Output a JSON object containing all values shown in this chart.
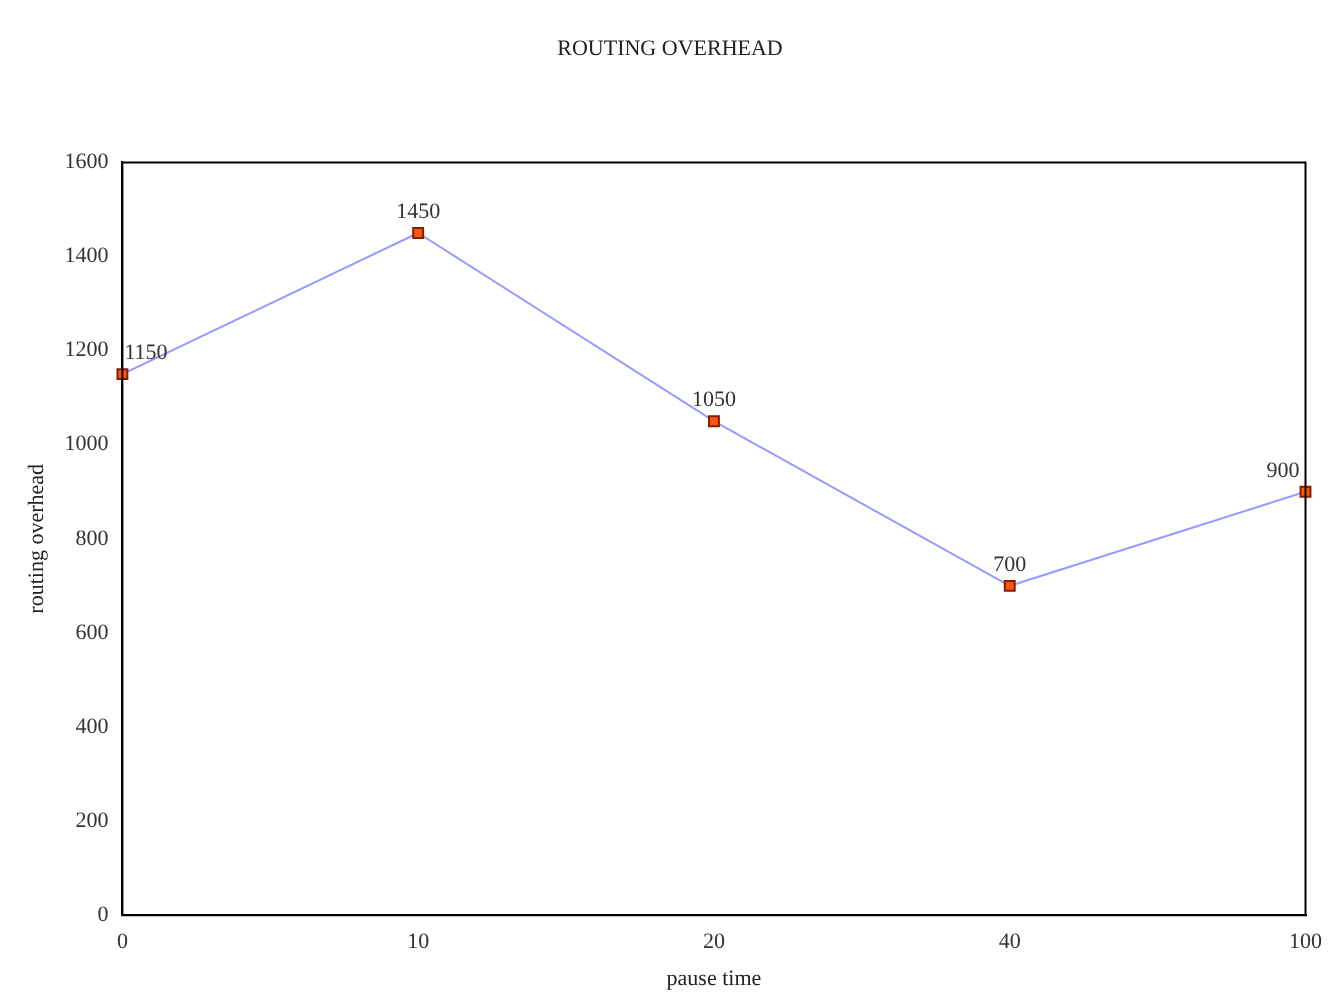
{
  "chart_data": {
    "type": "line",
    "title": "ROUTING OVERHEAD",
    "xlabel": "pause time",
    "ylabel": "routing overhead",
    "categories": [
      "0",
      "10",
      "20",
      "40",
      "100"
    ],
    "series": [
      {
        "color": "#9999ff",
        "values": [
          1150,
          1450,
          1050,
          700,
          900
        ]
      }
    ],
    "ylim": [
      0,
      1600
    ],
    "yticks": [
      0,
      200,
      400,
      600,
      800,
      1000,
      1200,
      1400,
      1600
    ],
    "grid": false,
    "legend": false,
    "marker": "square",
    "line_style": "solid",
    "data_labels": true
  }
}
